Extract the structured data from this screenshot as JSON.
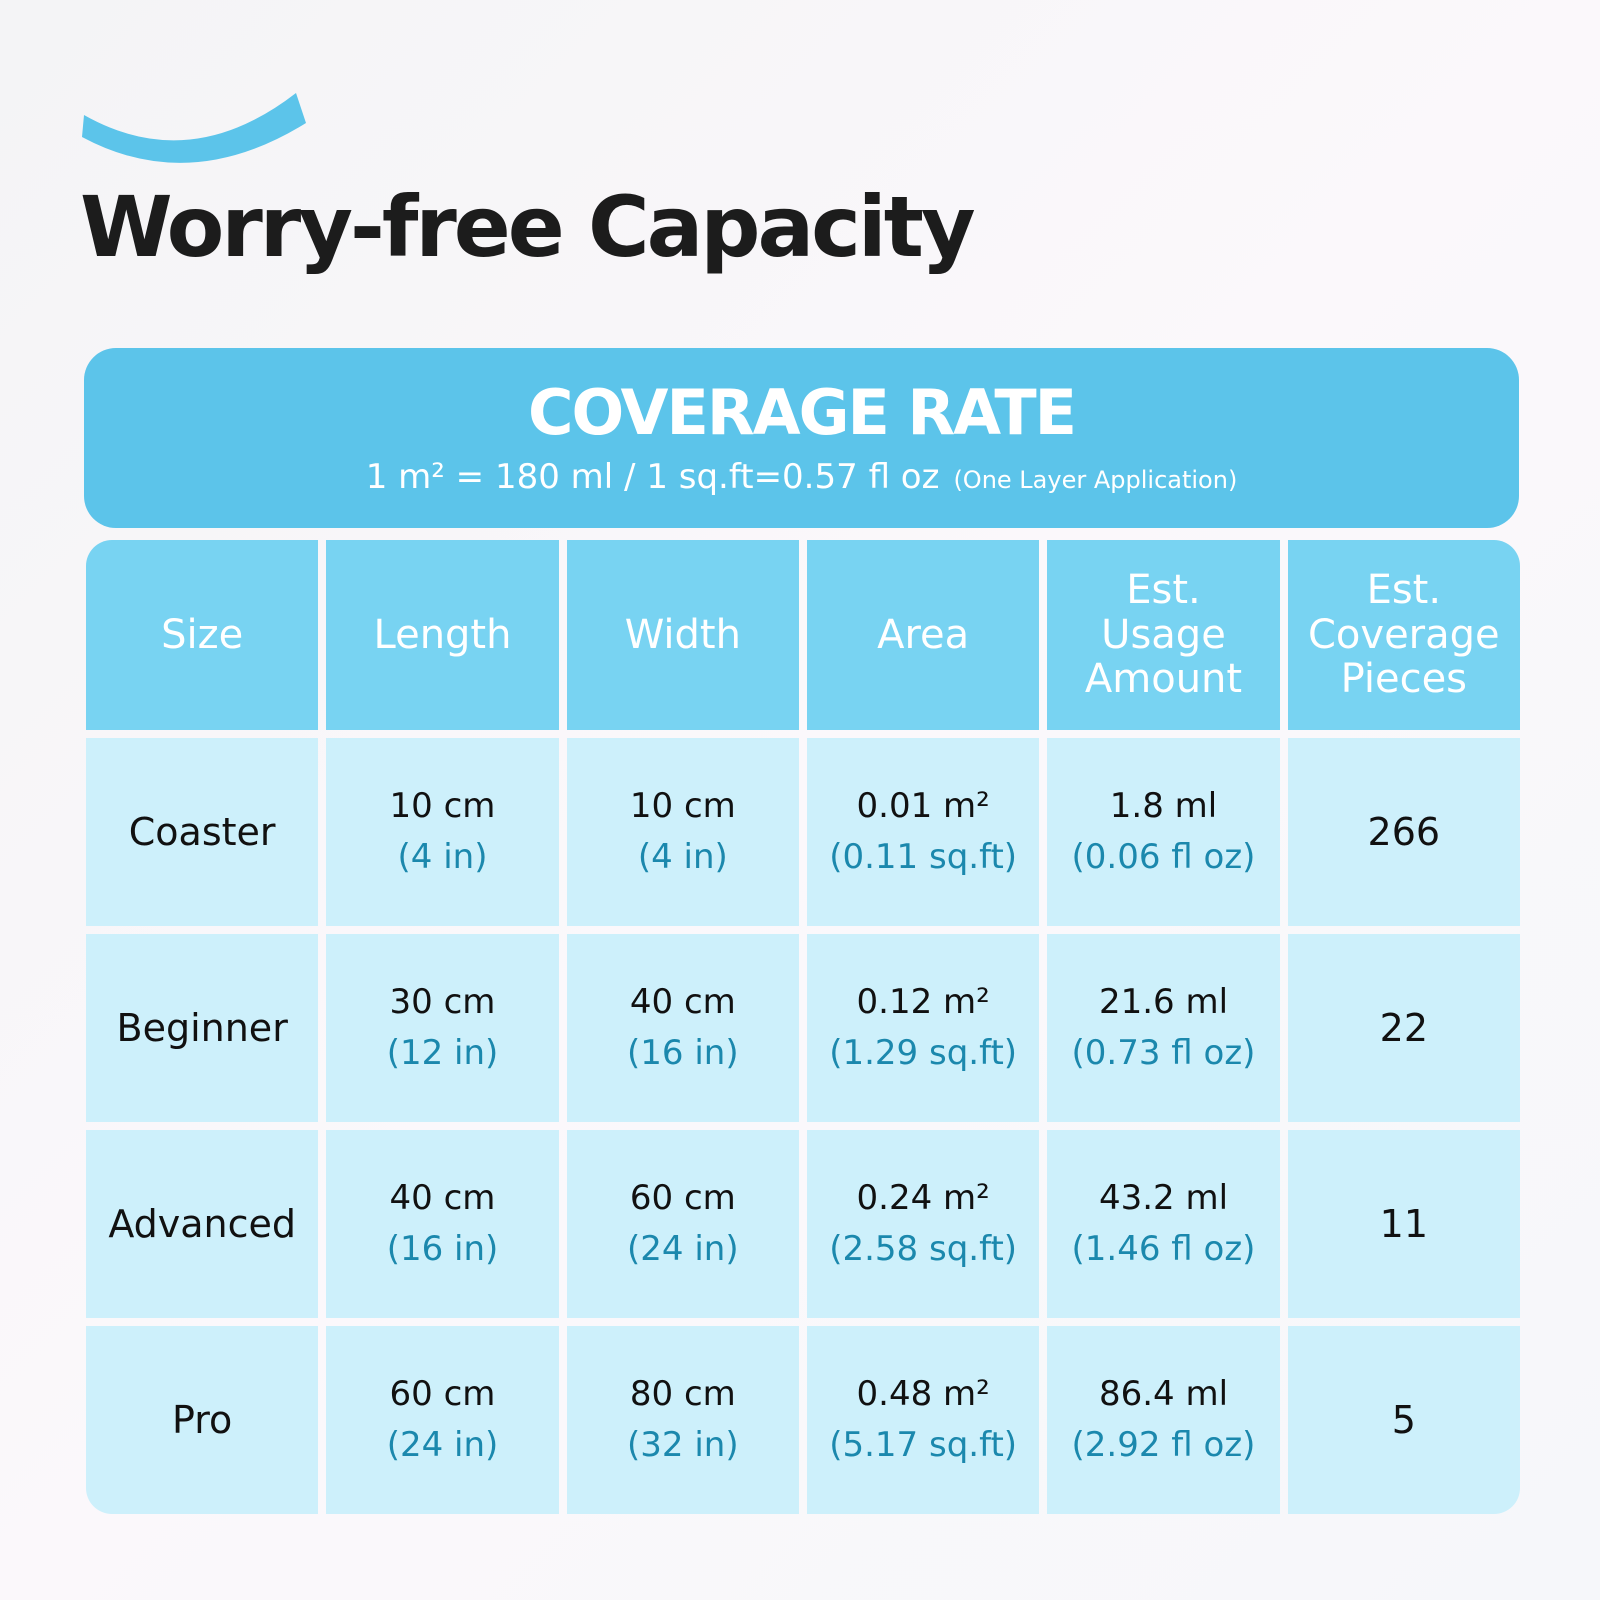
{
  "title": "Worry-free Capacity",
  "banner": {
    "title": "COVERAGE RATE",
    "formula": "1 m² = 180 ml / 1 sq.ft=0.57 fl oz",
    "note": "(One Layer Application)"
  },
  "table": {
    "header": [
      [
        "Size"
      ],
      [
        "Length"
      ],
      [
        "Width"
      ],
      [
        "Area"
      ],
      [
        "Est.",
        "Usage",
        "Amount"
      ],
      [
        "Est.",
        "Coverage",
        "Pieces"
      ]
    ],
    "rows": [
      {
        "size": "Coaster",
        "length": [
          "10 cm",
          "(4 in)"
        ],
        "width": [
          "10 cm",
          "(4 in)"
        ],
        "area": [
          "0.01 m²",
          "(0.11 sq.ft)"
        ],
        "usage": [
          "1.8 ml",
          "(0.06 fl oz)"
        ],
        "pieces": 266
      },
      {
        "size": "Beginner",
        "length": [
          "30 cm",
          "(12 in)"
        ],
        "width": [
          "40 cm",
          "(16 in)"
        ],
        "area": [
          "0.12 m²",
          "(1.29 sq.ft)"
        ],
        "usage": [
          "21.6 ml",
          "(0.73 fl oz)"
        ],
        "pieces": 22
      },
      {
        "size": "Advanced",
        "length": [
          "40 cm",
          "(16 in)"
        ],
        "width": [
          "60 cm",
          "(24 in)"
        ],
        "area": [
          "0.24 m²",
          "(2.58 sq.ft)"
        ],
        "usage": [
          "43.2 ml",
          "(1.46 fl oz)"
        ],
        "pieces": 11
      },
      {
        "size": "Pro",
        "length": [
          "60 cm",
          "(24 in)"
        ],
        "width": [
          "80 cm",
          "(32 in)"
        ],
        "area": [
          "0.48 m²",
          "(5.17 sq.ft)"
        ],
        "usage": [
          "86.4 ml",
          "(2.92 fl oz)"
        ],
        "pieces": 5
      }
    ]
  }
}
